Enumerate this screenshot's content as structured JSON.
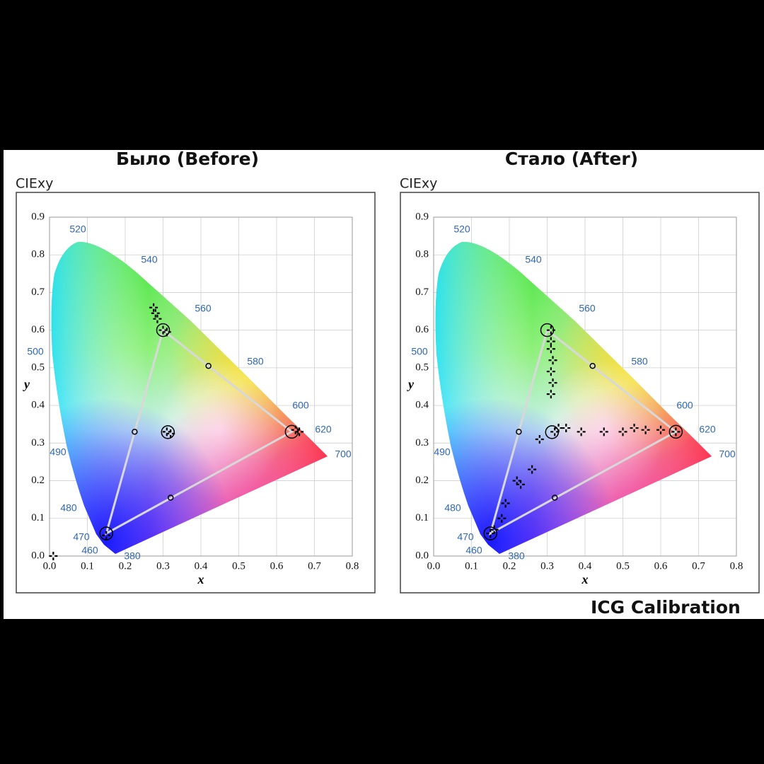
{
  "chart_data": [
    {
      "type": "scatter",
      "title": "Было (Before)",
      "subtitle": "CIExy",
      "xlabel": "x",
      "ylabel": "y",
      "xlim": [
        0,
        0.8
      ],
      "ylim": [
        0,
        0.9
      ],
      "xticks": [
        {
          "value": 0,
          "label": "0.0"
        },
        0.1,
        0.2,
        0.3,
        0.4,
        0.5,
        0.6,
        0.7,
        0.8
      ],
      "yticks": [
        {
          "value": 0,
          "label": "0.0"
        },
        0.1,
        0.2,
        0.3,
        0.4,
        0.5,
        0.6,
        0.7,
        0.8,
        0.9
      ],
      "grid": true,
      "annotations": [
        "520",
        "540",
        "560",
        "580",
        "600",
        "620",
        "700",
        "500",
        "490",
        "480",
        "470",
        "460",
        "380"
      ],
      "series": [
        {
          "marker": "circle",
          "color": "#000000",
          "closed": true,
          "line_color": "#d8d8d8",
          "x": [
            0.64,
            0.3,
            0.15
          ],
          "values": [
            0.33,
            0.6,
            0.06
          ]
        },
        {
          "marker": "circle",
          "color": "#000000",
          "x": [
            0.3127
          ],
          "values": [
            0.329
          ]
        },
        {
          "marker": "small-circle",
          "color": "#000000",
          "x": [
            0.225,
            0.42,
            0.32
          ],
          "values": [
            0.33,
            0.505,
            0.155
          ]
        },
        {
          "marker": "cross",
          "color": "#000000",
          "x": [
            0.275,
            0.28,
            0.285,
            0.3,
            0.31,
            0.66,
            0.65,
            0.31,
            0.32,
            0.15,
            0.01
          ],
          "values": [
            0.66,
            0.645,
            0.63,
            0.6,
            0.595,
            0.33,
            0.335,
            0.33,
            0.325,
            0.055,
            0.0
          ]
        }
      ]
    },
    {
      "type": "scatter",
      "title": "Стало (After)",
      "subtitle": "CIExy",
      "xlabel": "x",
      "ylabel": "y",
      "xlim": [
        0,
        0.8
      ],
      "ylim": [
        0,
        0.9
      ],
      "xticks": [
        {
          "value": 0,
          "label": "0.0"
        },
        0.1,
        0.2,
        0.3,
        0.4,
        0.5,
        0.6,
        0.7,
        0.8
      ],
      "yticks": [
        {
          "value": 0,
          "label": "0.0"
        },
        0.1,
        0.2,
        0.3,
        0.4,
        0.5,
        0.6,
        0.7,
        0.8,
        0.9
      ],
      "grid": true,
      "annotations": [
        "520",
        "540",
        "560",
        "580",
        "600",
        "620",
        "700",
        "500",
        "490",
        "480",
        "470",
        "460",
        "380"
      ],
      "series": [
        {
          "marker": "circle",
          "color": "#000000",
          "closed": true,
          "line_color": "#d8d8d8",
          "x": [
            0.64,
            0.3,
            0.15
          ],
          "values": [
            0.33,
            0.6,
            0.06
          ]
        },
        {
          "marker": "circle",
          "color": "#000000",
          "x": [
            0.3127
          ],
          "values": [
            0.329
          ]
        },
        {
          "marker": "small-circle",
          "color": "#000000",
          "x": [
            0.225,
            0.42,
            0.32
          ],
          "values": [
            0.33,
            0.505,
            0.155
          ]
        },
        {
          "marker": "cross",
          "color": "#000000",
          "x": [
            0.31,
            0.31,
            0.31,
            0.315,
            0.31,
            0.315,
            0.31,
            0.32,
            0.33,
            0.35,
            0.39,
            0.45,
            0.5,
            0.53,
            0.56,
            0.6,
            0.64,
            0.28,
            0.26,
            0.23,
            0.22,
            0.19,
            0.18,
            0.16,
            0.15
          ],
          "values": [
            0.6,
            0.57,
            0.55,
            0.52,
            0.49,
            0.46,
            0.43,
            0.33,
            0.34,
            0.34,
            0.33,
            0.33,
            0.33,
            0.34,
            0.335,
            0.335,
            0.33,
            0.31,
            0.23,
            0.19,
            0.2,
            0.14,
            0.1,
            0.07,
            0.06
          ]
        }
      ]
    }
  ],
  "footer": "ICG Calibration"
}
